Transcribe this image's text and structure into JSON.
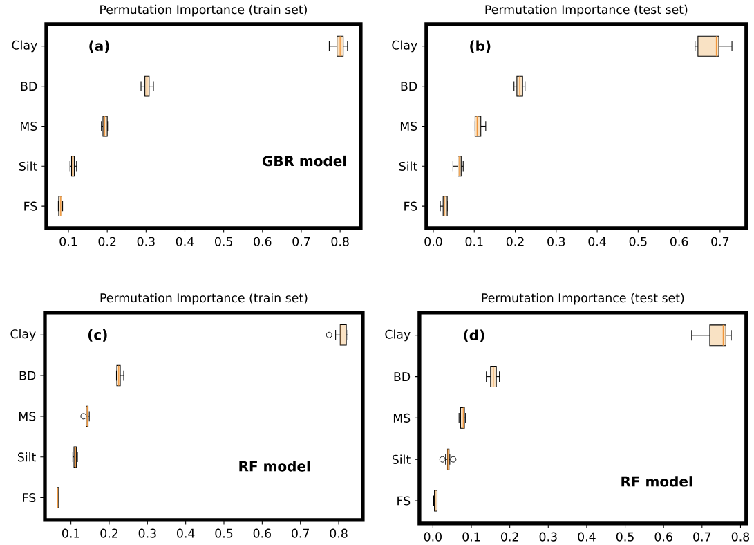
{
  "chart_data": [
    {
      "type": "box",
      "title": "Permutation Importance (train set)",
      "orientation": "horizontal",
      "categories": [
        "Clay",
        "BD",
        "MS",
        "Silt",
        "FS"
      ],
      "color": "#f9e2c4",
      "xlim": [
        0.043,
        0.853
      ],
      "xticks": [
        0.1,
        0.2,
        0.3,
        0.4,
        0.5,
        0.6,
        0.7,
        0.8
      ],
      "annotations": [
        "(a)",
        "GBR model"
      ],
      "boxes": [
        {
          "low": 0.772,
          "q1": 0.792,
          "median": 0.8,
          "q3": 0.808,
          "high": 0.819
        },
        {
          "low": 0.287,
          "q1": 0.297,
          "median": 0.302,
          "q3": 0.308,
          "high": 0.319
        },
        {
          "low": 0.185,
          "q1": 0.189,
          "median": 0.193,
          "q3": 0.2,
          "high": 0.201
        },
        {
          "low": 0.104,
          "q1": 0.108,
          "median": 0.111,
          "q3": 0.115,
          "high": 0.121
        },
        {
          "low": 0.074,
          "q1": 0.075,
          "median": 0.08,
          "q3": 0.083,
          "high": 0.085
        }
      ]
    },
    {
      "type": "box",
      "title": "Permutation Importance (test set)",
      "orientation": "horizontal",
      "categories": [
        "Clay",
        "BD",
        "MS",
        "Silt",
        "FS"
      ],
      "color": "#f9e2c4",
      "xlim": [
        -0.017,
        0.764
      ],
      "xticks": [
        {
          "value": 0,
          "label": "0.0"
        },
        0.1,
        0.2,
        0.3,
        0.4,
        0.5,
        0.6,
        0.7
      ],
      "annotations": [
        "(b)"
      ],
      "boxes": [
        {
          "low": 0.639,
          "q1": 0.646,
          "median": 0.691,
          "q3": 0.697,
          "high": 0.729
        },
        {
          "low": 0.197,
          "q1": 0.204,
          "median": 0.211,
          "q3": 0.218,
          "high": 0.224
        },
        {
          "low": 0.102,
          "q1": 0.102,
          "median": 0.107,
          "q3": 0.116,
          "high": 0.128
        },
        {
          "low": 0.048,
          "q1": 0.06,
          "median": 0.064,
          "q3": 0.068,
          "high": 0.073
        },
        {
          "low": 0.017,
          "q1": 0.024,
          "median": 0.027,
          "q3": 0.034,
          "high": 0.034
        }
      ]
    },
    {
      "type": "box",
      "title": "Permutation Importance (train set)",
      "orientation": "horizontal",
      "categories": [
        "Clay",
        "BD",
        "MS",
        "Silt",
        "FS"
      ],
      "color": "#f9e2c4",
      "xlim": [
        0.032,
        0.863
      ],
      "xticks": [
        0.1,
        0.2,
        0.3,
        0.4,
        0.5,
        0.6,
        0.7,
        0.8
      ],
      "annotations": [
        "(c)",
        "RF model"
      ],
      "boxes": [
        {
          "low": 0.792,
          "q1": 0.804,
          "median": 0.806,
          "q3": 0.82,
          "high": 0.824,
          "outliers": [
            0.775
          ]
        },
        {
          "low": 0.219,
          "q1": 0.22,
          "median": 0.225,
          "q3": 0.229,
          "high": 0.238
        },
        {
          "low": 0.14,
          "q1": 0.14,
          "median": 0.143,
          "q3": 0.145,
          "high": 0.148,
          "outliers": [
            0.133
          ]
        },
        {
          "low": 0.105,
          "q1": 0.108,
          "median": 0.112,
          "q3": 0.114,
          "high": 0.117
        },
        {
          "low": 0.064,
          "q1": 0.064,
          "median": 0.065,
          "q3": 0.068,
          "high": 0.068
        }
      ]
    },
    {
      "type": "box",
      "title": "Permutation Importance (test set)",
      "orientation": "horizontal",
      "categories": [
        "Clay",
        "BD",
        "MS",
        "Silt",
        "FS"
      ],
      "color": "#f9e2c4",
      "xlim": [
        -0.035,
        0.815
      ],
      "xticks": [
        {
          "value": 0,
          "label": "0.0"
        },
        0.1,
        0.2,
        0.3,
        0.4,
        0.5,
        0.6,
        0.7,
        0.8
      ],
      "annotations": [
        "(d)",
        "RF model"
      ],
      "boxes": [
        {
          "low": 0.673,
          "q1": 0.72,
          "median": 0.755,
          "q3": 0.762,
          "high": 0.776
        },
        {
          "low": 0.139,
          "q1": 0.15,
          "median": 0.157,
          "q3": 0.165,
          "high": 0.173
        },
        {
          "low": 0.068,
          "q1": 0.072,
          "median": 0.079,
          "q3": 0.082,
          "high": 0.085
        },
        {
          "low": 0.033,
          "q1": 0.038,
          "median": 0.039,
          "q3": 0.042,
          "high": 0.044,
          "outliers": [
            0.025,
            0.053
          ]
        },
        {
          "low": 0.002,
          "q1": 0.004,
          "median": 0.006,
          "q3": 0.011,
          "high": 0.011
        }
      ]
    }
  ]
}
